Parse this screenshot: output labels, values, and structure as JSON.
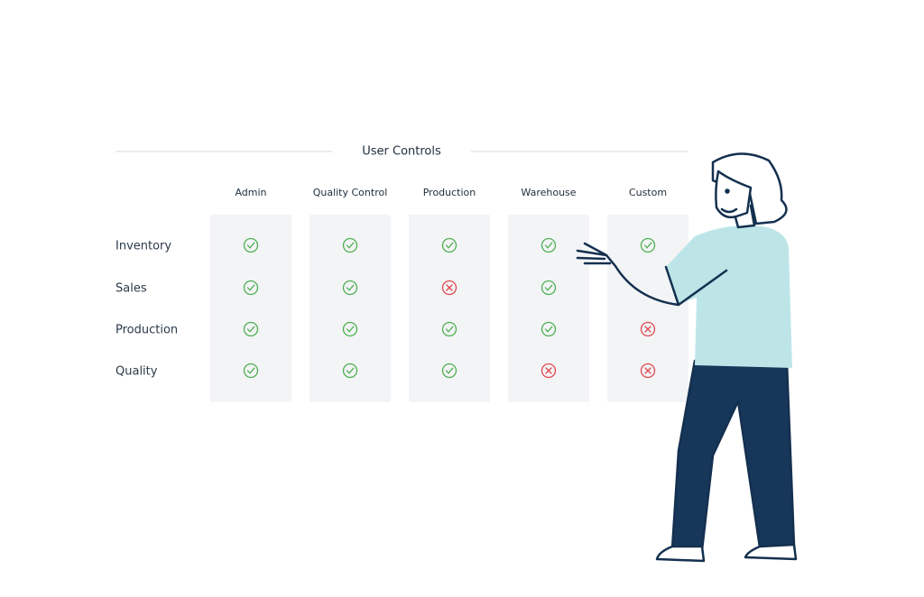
{
  "title": "User Controls",
  "columns": [
    "Admin",
    "Quality Control",
    "Production",
    "Warehouse",
    "Custom"
  ],
  "rows": [
    {
      "label": "Inventory",
      "allowed": [
        true,
        true,
        true,
        true,
        true
      ]
    },
    {
      "label": "Sales",
      "allowed": [
        true,
        true,
        false,
        true,
        null
      ]
    },
    {
      "label": "Production",
      "allowed": [
        true,
        true,
        true,
        true,
        false
      ]
    },
    {
      "label": "Quality",
      "allowed": [
        true,
        true,
        true,
        false,
        false
      ]
    }
  ]
}
